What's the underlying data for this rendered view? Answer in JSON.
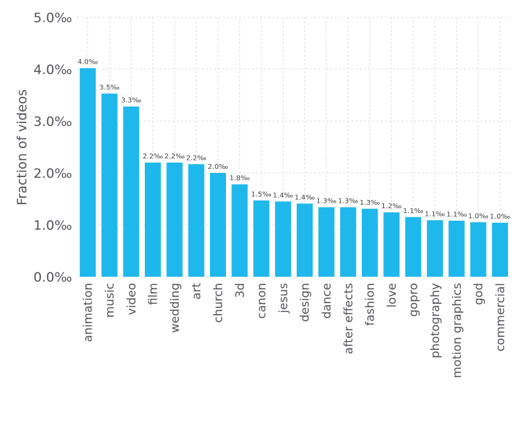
{
  "chart_data": {
    "type": "bar",
    "title": "",
    "xlabel": "",
    "ylabel": "Fraction of videos",
    "ylim": [
      0,
      5.0
    ],
    "unit": "‰",
    "yticks": [
      "0.0‰",
      "1.0‰",
      "2.0‰",
      "3.0‰",
      "4.0‰",
      "5.0‰"
    ],
    "yticks_values": [
      0,
      1,
      2,
      3,
      4,
      5
    ],
    "grid": true,
    "categories": [
      "animation",
      "music",
      "video",
      "film",
      "wedding",
      "art",
      "church",
      "3d",
      "canon",
      "jesus",
      "design",
      "dance",
      "after effects",
      "fashion",
      "love",
      "gopro",
      "photography",
      "motion graphics",
      "god",
      "commercial"
    ],
    "values": [
      4.02,
      3.53,
      3.28,
      2.2,
      2.2,
      2.17,
      2.0,
      1.78,
      1.47,
      1.45,
      1.41,
      1.34,
      1.34,
      1.31,
      1.24,
      1.15,
      1.09,
      1.08,
      1.05,
      1.04
    ],
    "data_labels": [
      "4.0‰",
      "3.5‰",
      "3.3‰",
      "2.2‰",
      "2.2‰",
      "2.2‰",
      "2.0‰",
      "1.8‰",
      "1.5‰",
      "1.4‰",
      "1.4‰",
      "1.3‰",
      "1.3‰",
      "1.3‰",
      "1.2‰",
      "1.1‰",
      "1.1‰",
      "1.1‰",
      "1.0‰",
      "1.0‰"
    ],
    "colors": {
      "bar": "#1fb8ec",
      "grid": "#dcdcdc",
      "text": "#55525a"
    }
  }
}
